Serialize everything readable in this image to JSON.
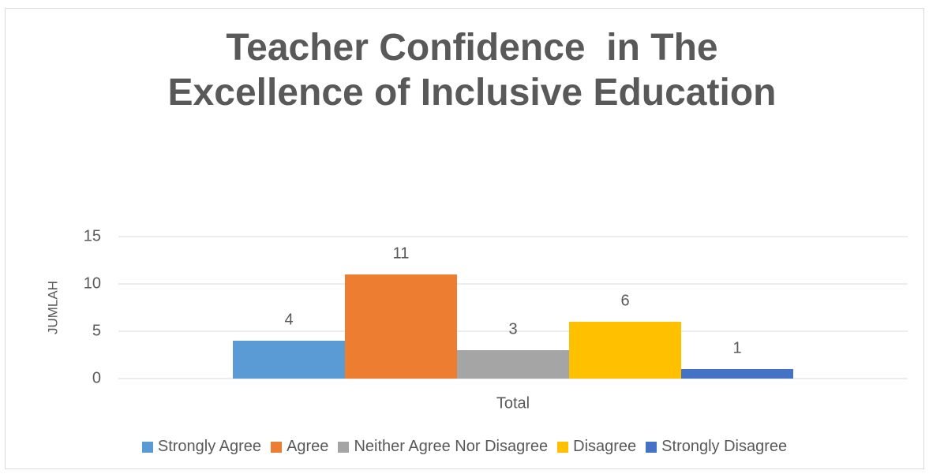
{
  "chart_data": {
    "type": "bar",
    "title": "Teacher Confidence  in The Excellence of Inclusive Education",
    "y_label": "JUMLAH",
    "categories": [
      "Total"
    ],
    "series": [
      {
        "name": "Strongly Agree",
        "color": "#5b9bd5",
        "values": [
          4
        ]
      },
      {
        "name": "Agree",
        "color": "#ed7d31",
        "values": [
          11
        ]
      },
      {
        "name": "Neither Agree Nor Disagree",
        "color": "#a5a5a5",
        "values": [
          3
        ]
      },
      {
        "name": "Disagree",
        "color": "#ffc000",
        "values": [
          6
        ]
      },
      {
        "name": "Strongly Disagree",
        "color": "#4472c4",
        "values": [
          1
        ]
      }
    ],
    "ylim": [
      0,
      15
    ],
    "yticks": [
      0,
      5,
      10,
      15
    ],
    "grid": true,
    "legend": "bottom"
  }
}
